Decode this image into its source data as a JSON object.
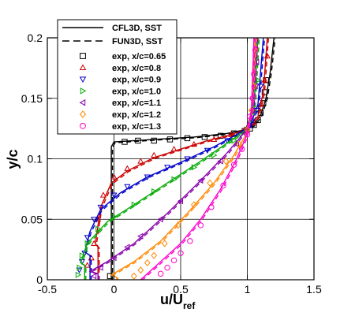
{
  "chart_data": {
    "type": "scatter",
    "title": "",
    "xlabel": {
      "main": "u/U",
      "sub": "ref"
    },
    "ylabel": "y/c",
    "xlim": [
      -0.5,
      1.5
    ],
    "ylim": [
      0,
      0.2
    ],
    "xticks": [
      -0.5,
      0,
      0.5,
      1,
      1.5
    ],
    "xtick_labels": [
      "-0.5",
      "0",
      "0.5",
      "1",
      "1.5"
    ],
    "yticks": [
      0,
      0.05,
      0.1,
      0.15,
      0.2
    ],
    "ytick_labels": [
      "0",
      "0.05",
      "0.1",
      "0.15",
      "0.2"
    ],
    "grid": true,
    "legend_position": "top-left",
    "line_legend": [
      {
        "name": "CFL3D, SST",
        "style": "solid"
      },
      {
        "name": "FUN3D, SST",
        "style": "dashed"
      }
    ],
    "series": [
      {
        "name": "exp, x/c=0.65",
        "color": "#000000",
        "marker": "square",
        "exp": [
          [
            -0.03,
            0.003
          ],
          [
            0.08,
            0.114
          ],
          [
            0.18,
            0.115
          ],
          [
            0.3,
            0.115
          ],
          [
            0.42,
            0.116
          ],
          [
            0.55,
            0.117
          ],
          [
            0.68,
            0.118
          ],
          [
            0.8,
            0.119
          ],
          [
            0.9,
            0.121
          ],
          [
            0.98,
            0.123
          ],
          [
            1.02,
            0.125
          ],
          [
            1.05,
            0.128
          ],
          [
            1.08,
            0.132
          ],
          [
            1.1,
            0.138
          ],
          [
            1.12,
            0.146
          ],
          [
            1.13,
            0.155
          ],
          [
            1.14,
            0.165
          ]
        ],
        "cfd": [
          [
            -0.02,
            0.0
          ],
          [
            -0.02,
            0.11
          ],
          [
            0.0,
            0.114
          ],
          [
            0.3,
            0.116
          ],
          [
            0.6,
            0.118
          ],
          [
            0.85,
            0.121
          ],
          [
            0.98,
            0.124
          ],
          [
            1.05,
            0.128
          ],
          [
            1.1,
            0.136
          ],
          [
            1.14,
            0.15
          ],
          [
            1.17,
            0.17
          ],
          [
            1.2,
            0.2
          ]
        ]
      },
      {
        "name": "exp, x/c=0.8",
        "color": "#cc0000",
        "marker": "triangle-up",
        "exp": [
          [
            -0.2,
            0.012
          ],
          [
            -0.17,
            0.018
          ],
          [
            -0.15,
            0.03
          ],
          [
            -0.12,
            0.05
          ],
          [
            -0.08,
            0.07
          ],
          [
            0.0,
            0.085
          ],
          [
            0.1,
            0.092
          ],
          [
            0.2,
            0.098
          ],
          [
            0.3,
            0.103
          ],
          [
            0.45,
            0.108
          ],
          [
            0.6,
            0.112
          ],
          [
            0.75,
            0.116
          ],
          [
            0.88,
            0.12
          ],
          [
            0.98,
            0.124
          ],
          [
            1.05,
            0.13
          ],
          [
            1.1,
            0.145
          ],
          [
            1.13,
            0.165
          ],
          [
            1.15,
            0.185
          ]
        ],
        "cfd": [
          [
            -0.12,
            0.0
          ],
          [
            -0.12,
            0.027
          ],
          [
            -0.14,
            0.03
          ],
          [
            -0.1,
            0.06
          ],
          [
            -0.02,
            0.08
          ],
          [
            0.1,
            0.09
          ],
          [
            0.3,
            0.101
          ],
          [
            0.5,
            0.108
          ],
          [
            0.7,
            0.115
          ],
          [
            0.88,
            0.12
          ],
          [
            1.0,
            0.125
          ],
          [
            1.08,
            0.135
          ],
          [
            1.12,
            0.155
          ],
          [
            1.15,
            0.2
          ]
        ]
      },
      {
        "name": "exp, x/c=0.9",
        "color": "#0000cc",
        "marker": "triangle-down",
        "exp": [
          [
            -0.26,
            0.008
          ],
          [
            -0.24,
            0.015
          ],
          [
            -0.22,
            0.022
          ],
          [
            -0.2,
            0.035
          ],
          [
            -0.15,
            0.05
          ],
          [
            -0.1,
            0.06
          ],
          [
            0.0,
            0.07
          ],
          [
            0.1,
            0.077
          ],
          [
            0.25,
            0.085
          ],
          [
            0.4,
            0.093
          ],
          [
            0.55,
            0.1
          ],
          [
            0.7,
            0.107
          ],
          [
            0.85,
            0.115
          ],
          [
            0.95,
            0.12
          ],
          [
            1.02,
            0.128
          ],
          [
            1.07,
            0.14
          ],
          [
            1.1,
            0.16
          ]
        ],
        "cfd": [
          [
            -0.18,
            0.0
          ],
          [
            -0.18,
            0.02
          ],
          [
            -0.22,
            0.023
          ],
          [
            -0.18,
            0.04
          ],
          [
            -0.1,
            0.058
          ],
          [
            0.05,
            0.072
          ],
          [
            0.25,
            0.085
          ],
          [
            0.5,
            0.097
          ],
          [
            0.75,
            0.11
          ],
          [
            0.92,
            0.12
          ],
          [
            1.02,
            0.127
          ],
          [
            1.08,
            0.145
          ],
          [
            1.12,
            0.2
          ]
        ]
      },
      {
        "name": "exp, x/c=1.0",
        "color": "#00aa00",
        "marker": "triangle-right",
        "exp": [
          [
            -0.27,
            0.004
          ],
          [
            -0.26,
            0.01
          ],
          [
            -0.24,
            0.02
          ],
          [
            -0.2,
            0.03
          ],
          [
            -0.12,
            0.042
          ],
          [
            0.0,
            0.052
          ],
          [
            0.15,
            0.062
          ],
          [
            0.3,
            0.073
          ],
          [
            0.45,
            0.083
          ],
          [
            0.6,
            0.093
          ],
          [
            0.75,
            0.103
          ],
          [
            0.9,
            0.115
          ],
          [
            1.0,
            0.124
          ],
          [
            1.05,
            0.14
          ],
          [
            1.08,
            0.165
          ]
        ],
        "cfd": [
          [
            -0.22,
            0.0
          ],
          [
            -0.22,
            0.012
          ],
          [
            -0.25,
            0.014
          ],
          [
            -0.2,
            0.03
          ],
          [
            -0.05,
            0.048
          ],
          [
            0.15,
            0.062
          ],
          [
            0.4,
            0.08
          ],
          [
            0.65,
            0.098
          ],
          [
            0.85,
            0.113
          ],
          [
            0.98,
            0.123
          ],
          [
            1.05,
            0.14
          ],
          [
            1.08,
            0.2
          ]
        ]
      },
      {
        "name": "exp, x/c=1.1",
        "color": "#8800aa",
        "marker": "triangle-left",
        "exp": [
          [
            -0.15,
            0.003
          ],
          [
            -0.1,
            0.01
          ],
          [
            0.0,
            0.018
          ],
          [
            0.1,
            0.027
          ],
          [
            0.2,
            0.036
          ],
          [
            0.35,
            0.05
          ],
          [
            0.5,
            0.065
          ],
          [
            0.65,
            0.082
          ],
          [
            0.8,
            0.098
          ],
          [
            0.92,
            0.112
          ],
          [
            1.0,
            0.124
          ],
          [
            1.04,
            0.14
          ],
          [
            1.06,
            0.16
          ],
          [
            1.07,
            0.18
          ]
        ],
        "cfd": [
          [
            -0.12,
            0.0
          ],
          [
            -0.12,
            0.005
          ],
          [
            -0.18,
            0.007
          ],
          [
            -0.05,
            0.015
          ],
          [
            0.15,
            0.03
          ],
          [
            0.4,
            0.055
          ],
          [
            0.65,
            0.082
          ],
          [
            0.85,
            0.105
          ],
          [
            0.98,
            0.122
          ],
          [
            1.04,
            0.14
          ],
          [
            1.07,
            0.2
          ]
        ]
      },
      {
        "name": "exp, x/c=1.2",
        "color": "#ff8800",
        "marker": "diamond",
        "exp": [
          [
            0.15,
            0.003
          ],
          [
            0.2,
            0.008
          ],
          [
            0.25,
            0.014
          ],
          [
            0.3,
            0.02
          ],
          [
            0.38,
            0.03
          ],
          [
            0.48,
            0.045
          ],
          [
            0.6,
            0.062
          ],
          [
            0.72,
            0.08
          ],
          [
            0.84,
            0.098
          ],
          [
            0.94,
            0.112
          ],
          [
            1.0,
            0.124
          ],
          [
            1.03,
            0.14
          ],
          [
            1.05,
            0.16
          ],
          [
            1.06,
            0.19
          ]
        ],
        "cfd": [
          [
            0.02,
            0.0
          ],
          [
            0.02,
            0.002
          ],
          [
            -0.02,
            0.004
          ],
          [
            0.15,
            0.015
          ],
          [
            0.35,
            0.032
          ],
          [
            0.55,
            0.055
          ],
          [
            0.75,
            0.08
          ],
          [
            0.9,
            0.103
          ],
          [
            0.99,
            0.12
          ],
          [
            1.03,
            0.14
          ],
          [
            1.06,
            0.2
          ]
        ]
      },
      {
        "name": "exp, x/c=1.3",
        "color": "#ff00cc",
        "marker": "circle",
        "exp": [
          [
            0.35,
            0.005
          ],
          [
            0.4,
            0.01
          ],
          [
            0.45,
            0.016
          ],
          [
            0.5,
            0.022
          ],
          [
            0.57,
            0.032
          ],
          [
            0.65,
            0.045
          ],
          [
            0.73,
            0.06
          ],
          [
            0.82,
            0.078
          ],
          [
            0.9,
            0.095
          ],
          [
            0.96,
            0.108
          ],
          [
            1.0,
            0.12
          ],
          [
            1.02,
            0.135
          ],
          [
            1.04,
            0.15
          ],
          [
            1.05,
            0.17
          ],
          [
            1.06,
            0.19
          ]
        ],
        "cfd": [
          [
            0.2,
            0.0
          ],
          [
            0.25,
            0.005
          ],
          [
            0.35,
            0.015
          ],
          [
            0.5,
            0.03
          ],
          [
            0.65,
            0.05
          ],
          [
            0.8,
            0.075
          ],
          [
            0.92,
            0.1
          ],
          [
            0.99,
            0.118
          ],
          [
            1.03,
            0.14
          ],
          [
            1.05,
            0.2
          ]
        ]
      }
    ]
  }
}
